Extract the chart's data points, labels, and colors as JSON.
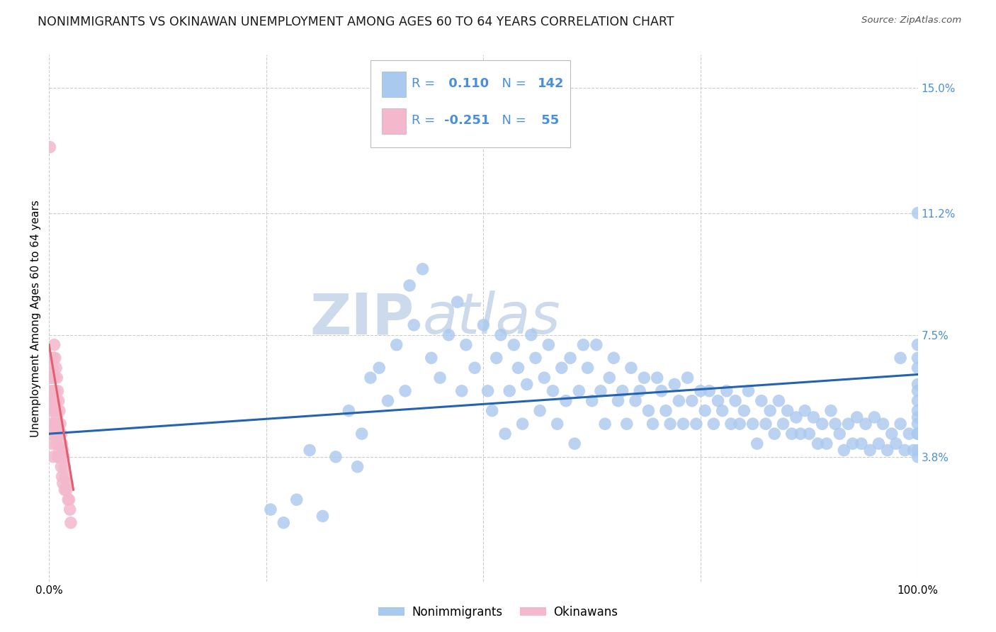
{
  "title": "NONIMMIGRANTS VS OKINAWAN UNEMPLOYMENT AMONG AGES 60 TO 64 YEARS CORRELATION CHART",
  "source": "Source: ZipAtlas.com",
  "ylabel": "Unemployment Among Ages 60 to 64 years",
  "xlim": [
    0.0,
    1.0
  ],
  "ylim": [
    0.0,
    0.16
  ],
  "yticks": [
    0.038,
    0.075,
    0.112,
    0.15
  ],
  "ytick_labels": [
    "3.8%",
    "7.5%",
    "11.2%",
    "15.0%"
  ],
  "blue_r": 0.11,
  "blue_n": 142,
  "pink_r": -0.251,
  "pink_n": 55,
  "blue_color": "#aac9ee",
  "pink_color": "#f4b8cc",
  "blue_line_color": "#2563b0",
  "pink_line_color": "#e06070",
  "background_color": "#ffffff",
  "grid_color": "#cccccc",
  "legend_text_color": "#4a90d9",
  "title_fontsize": 12.5,
  "axis_label_fontsize": 11,
  "tick_fontsize": 11,
  "watermark_color": "#ccdaeb",
  "blue_scatter_x": [
    0.255,
    0.27,
    0.285,
    0.3,
    0.315,
    0.33,
    0.345,
    0.355,
    0.36,
    0.37,
    0.38,
    0.39,
    0.4,
    0.41,
    0.415,
    0.42,
    0.43,
    0.44,
    0.45,
    0.46,
    0.47,
    0.475,
    0.48,
    0.49,
    0.5,
    0.505,
    0.51,
    0.515,
    0.52,
    0.525,
    0.53,
    0.535,
    0.54,
    0.545,
    0.55,
    0.555,
    0.56,
    0.565,
    0.57,
    0.575,
    0.58,
    0.585,
    0.59,
    0.595,
    0.6,
    0.605,
    0.61,
    0.615,
    0.62,
    0.625,
    0.63,
    0.635,
    0.64,
    0.645,
    0.65,
    0.655,
    0.66,
    0.665,
    0.67,
    0.675,
    0.68,
    0.685,
    0.69,
    0.695,
    0.7,
    0.705,
    0.71,
    0.715,
    0.72,
    0.725,
    0.73,
    0.735,
    0.74,
    0.745,
    0.75,
    0.755,
    0.76,
    0.765,
    0.77,
    0.775,
    0.78,
    0.785,
    0.79,
    0.795,
    0.8,
    0.805,
    0.81,
    0.815,
    0.82,
    0.825,
    0.83,
    0.835,
    0.84,
    0.845,
    0.85,
    0.855,
    0.86,
    0.865,
    0.87,
    0.875,
    0.88,
    0.885,
    0.89,
    0.895,
    0.9,
    0.905,
    0.91,
    0.915,
    0.92,
    0.925,
    0.93,
    0.935,
    0.94,
    0.945,
    0.95,
    0.955,
    0.96,
    0.965,
    0.97,
    0.975,
    0.98,
    0.985,
    0.99,
    0.995,
    1.0,
    1.0,
    1.0,
    1.0,
    1.0,
    1.0,
    1.0,
    1.0,
    1.0,
    1.0,
    1.0,
    1.0,
    1.0,
    1.0,
    0.98
  ],
  "blue_scatter_y": [
    0.022,
    0.018,
    0.025,
    0.04,
    0.02,
    0.038,
    0.052,
    0.035,
    0.045,
    0.062,
    0.065,
    0.055,
    0.072,
    0.058,
    0.09,
    0.078,
    0.095,
    0.068,
    0.062,
    0.075,
    0.085,
    0.058,
    0.072,
    0.065,
    0.078,
    0.058,
    0.052,
    0.068,
    0.075,
    0.045,
    0.058,
    0.072,
    0.065,
    0.048,
    0.06,
    0.075,
    0.068,
    0.052,
    0.062,
    0.072,
    0.058,
    0.048,
    0.065,
    0.055,
    0.068,
    0.042,
    0.058,
    0.072,
    0.065,
    0.055,
    0.072,
    0.058,
    0.048,
    0.062,
    0.068,
    0.055,
    0.058,
    0.048,
    0.065,
    0.055,
    0.058,
    0.062,
    0.052,
    0.048,
    0.062,
    0.058,
    0.052,
    0.048,
    0.06,
    0.055,
    0.048,
    0.062,
    0.055,
    0.048,
    0.058,
    0.052,
    0.058,
    0.048,
    0.055,
    0.052,
    0.058,
    0.048,
    0.055,
    0.048,
    0.052,
    0.058,
    0.048,
    0.042,
    0.055,
    0.048,
    0.052,
    0.045,
    0.055,
    0.048,
    0.052,
    0.045,
    0.05,
    0.045,
    0.052,
    0.045,
    0.05,
    0.042,
    0.048,
    0.042,
    0.052,
    0.048,
    0.045,
    0.04,
    0.048,
    0.042,
    0.05,
    0.042,
    0.048,
    0.04,
    0.05,
    0.042,
    0.048,
    0.04,
    0.045,
    0.042,
    0.048,
    0.04,
    0.045,
    0.04,
    0.072,
    0.065,
    0.058,
    0.05,
    0.045,
    0.04,
    0.068,
    0.06,
    0.052,
    0.045,
    0.038,
    0.055,
    0.048,
    0.112,
    0.068
  ],
  "pink_scatter_x": [
    0.001,
    0.002,
    0.002,
    0.003,
    0.003,
    0.003,
    0.004,
    0.004,
    0.004,
    0.005,
    0.005,
    0.005,
    0.005,
    0.006,
    0.006,
    0.006,
    0.007,
    0.007,
    0.007,
    0.008,
    0.008,
    0.008,
    0.009,
    0.009,
    0.009,
    0.01,
    0.01,
    0.01,
    0.011,
    0.011,
    0.012,
    0.012,
    0.013,
    0.013,
    0.014,
    0.014,
    0.015,
    0.015,
    0.016,
    0.016,
    0.017,
    0.018,
    0.018,
    0.019,
    0.02,
    0.021,
    0.022,
    0.023,
    0.024,
    0.025,
    0.003,
    0.004,
    0.005,
    0.007,
    0.009
  ],
  "pink_scatter_y": [
    0.132,
    0.062,
    0.052,
    0.058,
    0.048,
    0.042,
    0.065,
    0.055,
    0.045,
    0.068,
    0.058,
    0.048,
    0.038,
    0.072,
    0.062,
    0.052,
    0.068,
    0.058,
    0.048,
    0.065,
    0.055,
    0.045,
    0.062,
    0.052,
    0.042,
    0.058,
    0.048,
    0.038,
    0.055,
    0.045,
    0.052,
    0.04,
    0.048,
    0.038,
    0.045,
    0.035,
    0.042,
    0.032,
    0.04,
    0.03,
    0.038,
    0.035,
    0.028,
    0.032,
    0.028,
    0.03,
    0.025,
    0.025,
    0.022,
    0.018,
    0.068,
    0.062,
    0.058,
    0.055,
    0.05
  ],
  "blue_line_start_y": 0.045,
  "blue_line_end_y": 0.063,
  "pink_line_start_x": 0.0,
  "pink_line_end_x": 0.028,
  "pink_line_start_y": 0.072,
  "pink_line_end_y": 0.028
}
